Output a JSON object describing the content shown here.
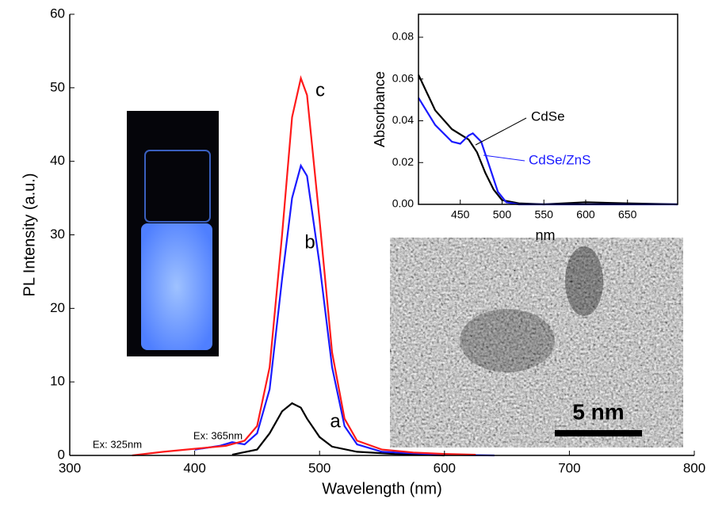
{
  "chart_data": [
    {
      "type": "line",
      "xlabel": "Wavelength (nm)",
      "ylabel": "PL Intensity (a.u.)",
      "xlim": [
        300,
        800
      ],
      "xticks": [
        300,
        400,
        500,
        600,
        700,
        800
      ],
      "ylim": [
        0,
        60
      ],
      "yticks": [
        0,
        10,
        20,
        30,
        40,
        50,
        60
      ],
      "annotations": [
        "Ex: 325nm",
        "Ex: 365nm"
      ],
      "series": [
        {
          "name": "a",
          "color": "#000000",
          "x": [
            430,
            450,
            460,
            470,
            478,
            485,
            490,
            500,
            510,
            530,
            560,
            600
          ],
          "values": [
            0.1,
            0.8,
            3,
            6,
            7.1,
            6.5,
            5,
            2.5,
            1.2,
            0.5,
            0.2,
            0
          ]
        },
        {
          "name": "b",
          "color": "#1a1aff",
          "x": [
            400,
            420,
            430,
            440,
            450,
            460,
            470,
            478,
            485,
            490,
            500,
            510,
            520,
            530,
            550,
            600,
            640
          ],
          "values": [
            0.8,
            1.3,
            1.8,
            1.5,
            3,
            9,
            24,
            35,
            39.4,
            38,
            26,
            12,
            4,
            1.5,
            0.5,
            0.1,
            0
          ]
        },
        {
          "name": "c",
          "color": "#ff1a1a",
          "x": [
            350,
            375,
            400,
            425,
            440,
            450,
            460,
            470,
            478,
            485,
            490,
            500,
            510,
            520,
            530,
            550,
            575,
            600,
            625
          ],
          "values": [
            0,
            0.5,
            0.9,
            1.3,
            2,
            4,
            12,
            30,
            46,
            51.3,
            49,
            32,
            14,
            5,
            2,
            0.8,
            0.4,
            0.2,
            0.1
          ]
        }
      ]
    },
    {
      "type": "line",
      "xlabel": "nm",
      "ylabel": "Absorbance",
      "xlim": [
        400,
        710
      ],
      "xticks": [
        450,
        500,
        550,
        600,
        650
      ],
      "ylim": [
        0,
        0.091
      ],
      "yticks": [
        {
          "value": 0,
          "label": "0.00"
        },
        {
          "value": 0.02,
          "label": "0.02"
        },
        {
          "value": 0.04,
          "label": "0.04"
        },
        {
          "value": 0.06,
          "label": "0.06"
        },
        {
          "value": 0.08,
          "label": "0.08"
        }
      ],
      "series": [
        {
          "name": "CdSe",
          "color": "#000000",
          "x": [
            400,
            420,
            440,
            460,
            470,
            480,
            490,
            500,
            520,
            550,
            600,
            650,
            710
          ],
          "values": [
            0.062,
            0.045,
            0.036,
            0.031,
            0.025,
            0.015,
            0.007,
            0.002,
            0.0005,
            0,
            0.001,
            0.0005,
            0
          ]
        },
        {
          "name": "CdSe/ZnS",
          "color": "#1a1aff",
          "x": [
            400,
            420,
            440,
            450,
            460,
            465,
            475,
            485,
            495,
            505,
            520,
            710
          ],
          "values": [
            0.051,
            0.038,
            0.03,
            0.029,
            0.033,
            0.034,
            0.03,
            0.018,
            0.006,
            0.001,
            0,
            0
          ]
        }
      ]
    }
  ],
  "tem_image": {
    "scale_bar": "5 nm"
  }
}
